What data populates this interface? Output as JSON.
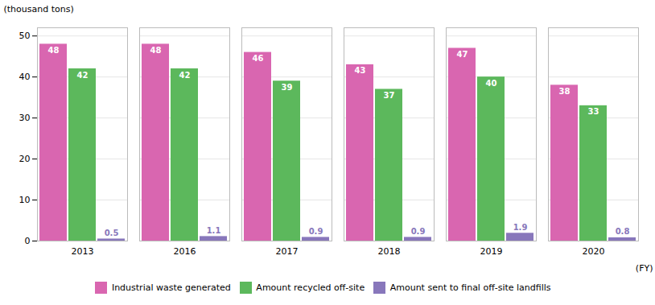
{
  "chart_data": {
    "type": "bar",
    "categories": [
      "2013",
      "2016",
      "2017",
      "2018",
      "2019",
      "2020"
    ],
    "series": [
      {
        "name": "Industrial waste generated",
        "color": "#d966b0",
        "values": [
          48,
          48,
          46,
          43,
          47,
          38
        ]
      },
      {
        "name": "Amount recycled off-site",
        "color": "#5cb85c",
        "values": [
          42,
          42,
          39,
          37,
          40,
          33
        ]
      },
      {
        "name": "Amount sent to final off-site landfills",
        "color": "#8877bb",
        "values": [
          0.5,
          1.1,
          0.9,
          0.9,
          1.9,
          0.8
        ]
      }
    ],
    "ylabel": "(thousand tons)",
    "xlabel": "(FY)",
    "ylim": [
      0,
      52
    ],
    "yticks": [
      0,
      10,
      20,
      30,
      40,
      50
    ],
    "grid": true,
    "data_labels": true,
    "legend": "bottom"
  }
}
